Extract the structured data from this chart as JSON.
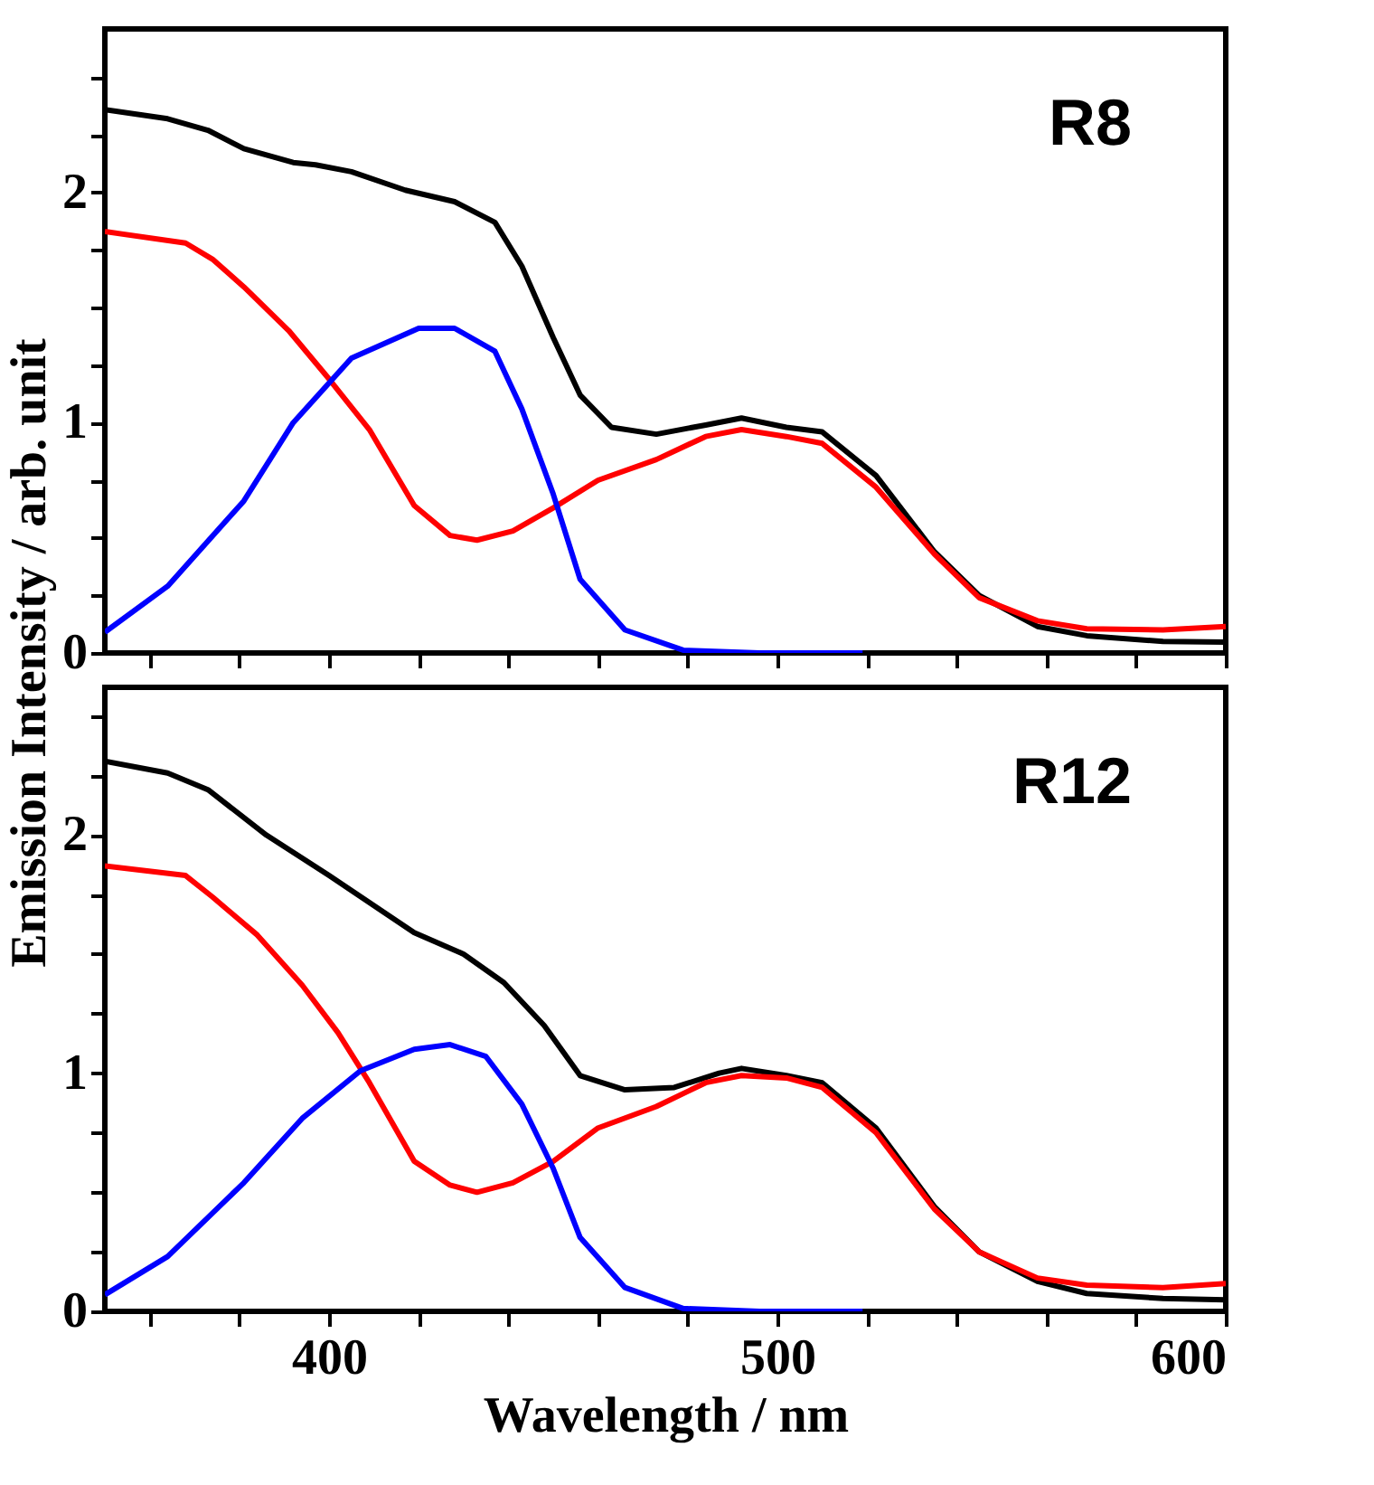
{
  "chart_data": [
    {
      "type": "line",
      "ylabel": "Emission Intensity / arb. unit",
      "annotations": [
        "R8"
      ],
      "xlim": [
        350,
        600
      ],
      "ylim": [
        0,
        2.71
      ],
      "xticks": [
        {
          "value": 360,
          "label": null
        },
        {
          "value": 380,
          "label": null
        },
        400,
        {
          "value": 420,
          "label": null
        },
        {
          "value": 440,
          "label": null
        },
        {
          "value": 460,
          "label": null
        },
        {
          "value": 480,
          "label": null
        },
        500,
        {
          "value": 520,
          "label": null
        },
        {
          "value": 540,
          "label": null
        },
        {
          "value": 560,
          "label": null
        },
        {
          "value": 580,
          "label": null
        },
        600
      ],
      "yticks": [
        0,
        {
          "value": 0.25,
          "label": null
        },
        {
          "value": 0.5,
          "label": null
        },
        {
          "value": 0.75,
          "label": null
        },
        1,
        {
          "value": 1.25,
          "label": null
        },
        {
          "value": 1.5,
          "label": null
        },
        {
          "value": 1.75,
          "label": null
        },
        2,
        {
          "value": 2.25,
          "label": null
        },
        {
          "value": 2.5,
          "label": null
        }
      ],
      "tick_labels": "y",
      "grid": false,
      "legend": false,
      "line_style": "solid",
      "marker": "none",
      "series": [
        {
          "color": "#000000",
          "x": [
            350,
            364,
            373,
            381,
            392,
            397,
            405,
            417,
            428,
            437,
            443,
            450,
            456,
            463,
            473,
            484,
            492,
            502,
            510,
            522,
            535,
            545,
            558,
            569,
            586,
            600
          ],
          "values": [
            2.36,
            2.32,
            2.27,
            2.19,
            2.13,
            2.12,
            2.09,
            2.01,
            1.96,
            1.87,
            1.68,
            1.37,
            1.12,
            0.98,
            0.95,
            0.99,
            1.02,
            0.98,
            0.96,
            0.77,
            0.44,
            0.25,
            0.115,
            0.075,
            0.05,
            0.047
          ]
        },
        {
          "color": "#ff0000",
          "x": [
            350,
            368,
            374,
            381,
            391,
            400,
            409,
            419,
            427,
            433,
            441,
            450,
            460,
            473,
            484,
            492,
            502,
            510,
            522,
            535,
            545,
            558,
            569,
            586,
            600
          ],
          "values": [
            1.83,
            1.78,
            1.71,
            1.59,
            1.4,
            1.19,
            0.97,
            0.64,
            0.51,
            0.49,
            0.53,
            0.63,
            0.75,
            0.84,
            0.94,
            0.97,
            0.94,
            0.91,
            0.72,
            0.43,
            0.24,
            0.14,
            0.105,
            0.1,
            0.115
          ]
        },
        {
          "color": "#0000ff",
          "x": [
            350,
            364,
            381,
            392,
            405,
            420,
            428,
            437,
            443,
            450,
            456,
            466,
            479,
            496,
            519
          ],
          "values": [
            0.09,
            0.29,
            0.66,
            1.0,
            1.28,
            1.41,
            1.41,
            1.31,
            1.06,
            0.69,
            0.32,
            0.1,
            0.012,
            0,
            0
          ]
        }
      ]
    },
    {
      "type": "line",
      "xlabel": "Wavelength / nm",
      "annotations": [
        "R12"
      ],
      "xlim": [
        350,
        600
      ],
      "ylim": [
        0,
        2.62
      ],
      "xticks": [
        {
          "value": 360,
          "label": null
        },
        {
          "value": 380,
          "label": null
        },
        400,
        {
          "value": 420,
          "label": null
        },
        {
          "value": 440,
          "label": null
        },
        {
          "value": 460,
          "label": null
        },
        {
          "value": 480,
          "label": null
        },
        500,
        {
          "value": 520,
          "label": null
        },
        {
          "value": 540,
          "label": null
        },
        {
          "value": 560,
          "label": null
        },
        {
          "value": 580,
          "label": null
        },
        600
      ],
      "yticks": [
        0,
        {
          "value": 0.25,
          "label": null
        },
        {
          "value": 0.5,
          "label": null
        },
        {
          "value": 0.75,
          "label": null
        },
        1,
        {
          "value": 1.25,
          "label": null
        },
        {
          "value": 1.5,
          "label": null
        },
        {
          "value": 1.75,
          "label": null
        },
        2,
        {
          "value": 2.25,
          "label": null
        },
        {
          "value": 2.5,
          "label": null
        }
      ],
      "grid": false,
      "legend": false,
      "line_style": "solid",
      "marker": "none",
      "series": [
        {
          "color": "#000000",
          "x": [
            350,
            364,
            373,
            386,
            400,
            419,
            430,
            439,
            448,
            456,
            466,
            477,
            487,
            492,
            502,
            510,
            522,
            535,
            545,
            558,
            569,
            586,
            600
          ],
          "values": [
            2.31,
            2.26,
            2.19,
            2.0,
            1.83,
            1.59,
            1.5,
            1.38,
            1.2,
            0.99,
            0.93,
            0.94,
            1.0,
            1.02,
            0.99,
            0.96,
            0.77,
            0.44,
            0.25,
            0.126,
            0.075,
            0.054,
            0.048
          ]
        },
        {
          "color": "#ff0000",
          "x": [
            350,
            368,
            374,
            384,
            394,
            402,
            409,
            419,
            427,
            433,
            441,
            450,
            460,
            473,
            484,
            492,
            502,
            510,
            522,
            535,
            545,
            558,
            569,
            586,
            600
          ],
          "values": [
            1.87,
            1.83,
            1.74,
            1.58,
            1.37,
            1.17,
            0.96,
            0.63,
            0.53,
            0.5,
            0.54,
            0.63,
            0.77,
            0.86,
            0.96,
            0.99,
            0.98,
            0.94,
            0.75,
            0.43,
            0.25,
            0.14,
            0.11,
            0.1,
            0.117
          ]
        },
        {
          "color": "#0000ff",
          "x": [
            350,
            364,
            381,
            394,
            407,
            419,
            427,
            435,
            443,
            450,
            456,
            466,
            479,
            496,
            519
          ],
          "values": [
            0.07,
            0.23,
            0.54,
            0.81,
            1.01,
            1.1,
            1.12,
            1.07,
            0.87,
            0.6,
            0.31,
            0.1,
            0.012,
            0,
            0
          ]
        }
      ]
    }
  ]
}
